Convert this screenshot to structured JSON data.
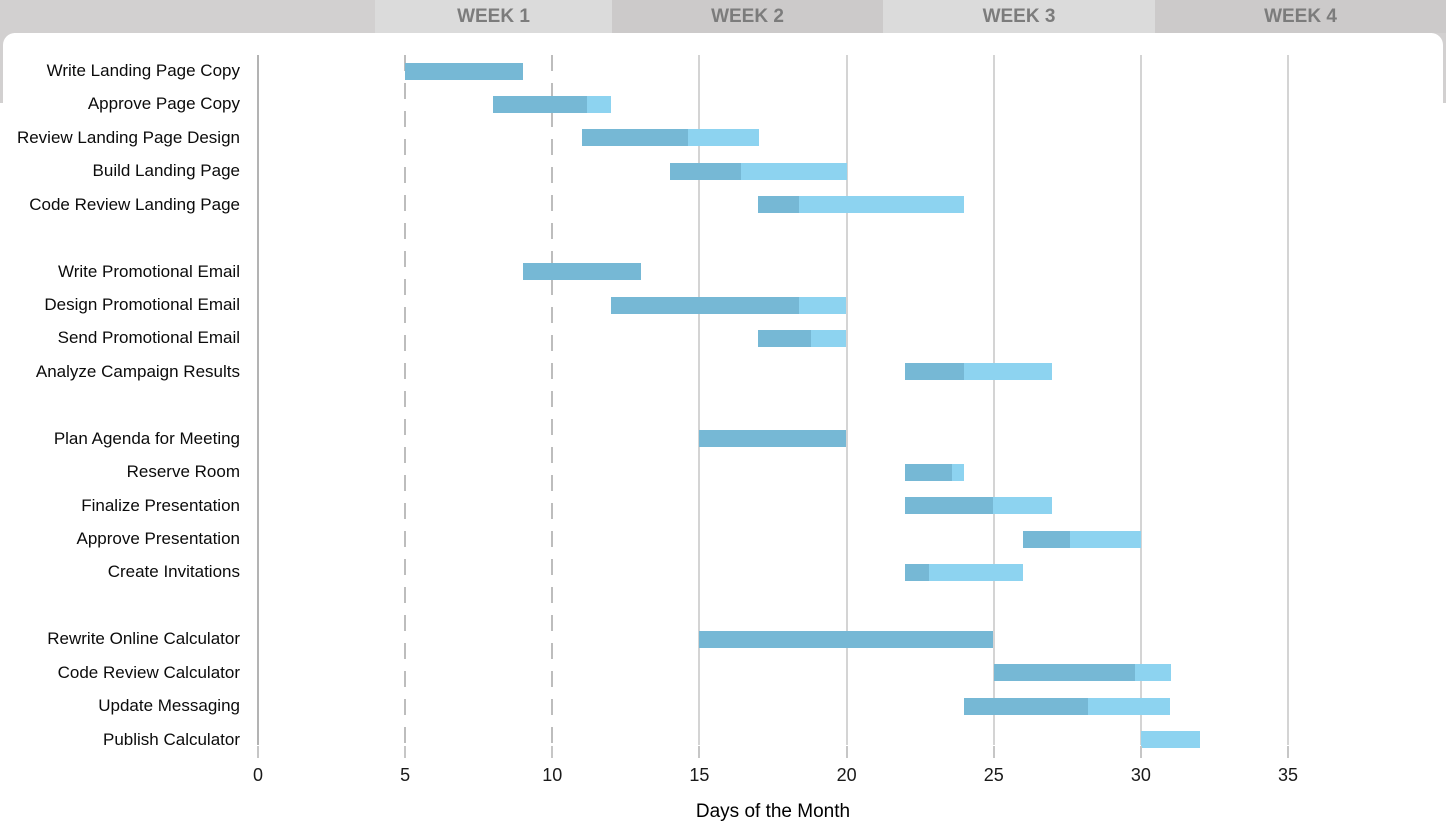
{
  "chart_data": {
    "type": "gantt",
    "title": "",
    "xlabel": "Days of the Month",
    "x_ticks": [
      0,
      5,
      10,
      15,
      20,
      25,
      30,
      35
    ],
    "x_range": [
      0,
      40
    ],
    "grid": "vertical, dashed at days 5 and 10, solid at 15-35",
    "week_headers": [
      "WEEK 1",
      "WEEK 2",
      "WEEK 3",
      "WEEK 4"
    ],
    "legend": "none",
    "bar_semantics": "dark portion = completed share of task, light portion = remaining",
    "groups": [
      {
        "tasks": [
          {
            "name": "Write Landing Page Copy",
            "start": 5,
            "duration": 4,
            "progress": 1.0
          },
          {
            "name": "Approve Page Copy",
            "start": 8,
            "duration": 4,
            "progress": 0.8
          },
          {
            "name": "Review Landing Page Design",
            "start": 11,
            "duration": 6,
            "progress": 0.6
          },
          {
            "name": "Build Landing Page",
            "start": 14,
            "duration": 6,
            "progress": 0.4
          },
          {
            "name": "Code Review Landing Page",
            "start": 17,
            "duration": 7,
            "progress": 0.2
          }
        ]
      },
      {
        "tasks": [
          {
            "name": "Write Promotional Email",
            "start": 9,
            "duration": 4,
            "progress": 1.0
          },
          {
            "name": "Design Promotional Email",
            "start": 12,
            "duration": 8,
            "progress": 0.8
          },
          {
            "name": "Send Promotional Email",
            "start": 17,
            "duration": 3,
            "progress": 0.6
          },
          {
            "name": "Analyze Campaign Results",
            "start": 22,
            "duration": 5,
            "progress": 0.4
          }
        ]
      },
      {
        "tasks": [
          {
            "name": "Plan Agenda for Meeting",
            "start": 15,
            "duration": 5,
            "progress": 1.0
          },
          {
            "name": "Reserve Room",
            "start": 22,
            "duration": 2,
            "progress": 0.8
          },
          {
            "name": "Finalize Presentation",
            "start": 22,
            "duration": 5,
            "progress": 0.6
          },
          {
            "name": "Approve Presentation",
            "start": 26,
            "duration": 4,
            "progress": 0.4
          },
          {
            "name": "Create Invitations",
            "start": 22,
            "duration": 4,
            "progress": 0.2
          }
        ]
      },
      {
        "tasks": [
          {
            "name": "Rewrite Online Calculator",
            "start": 15,
            "duration": 10,
            "progress": 1.0
          },
          {
            "name": "Code Review Calculator",
            "start": 25,
            "duration": 6,
            "progress": 0.8
          },
          {
            "name": "Update Messaging",
            "start": 24,
            "duration": 7,
            "progress": 0.6
          },
          {
            "name": "Publish Calculator",
            "start": 30,
            "duration": 2,
            "progress": 0.0
          }
        ]
      }
    ],
    "colors": {
      "bar_complete": "#76b8d5",
      "bar_remaining": "#8dd3f0",
      "week_band_light": "#dbdbdb",
      "week_band_dark": "#cccaca",
      "week_text": "#7c7c7c"
    }
  }
}
